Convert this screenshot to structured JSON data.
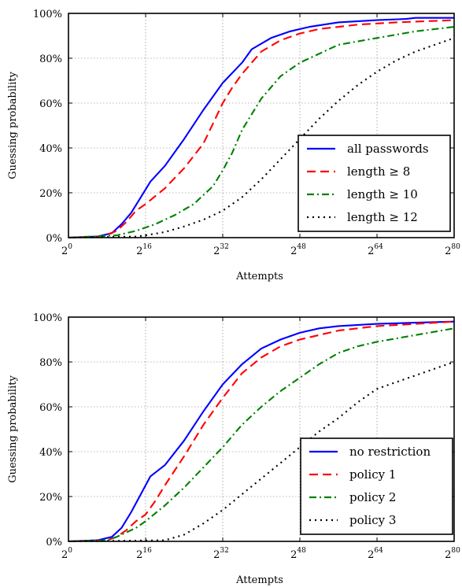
{
  "chart_data": [
    {
      "type": "line",
      "xlabel": "Attempts",
      "ylabel": "Guessing probability",
      "x_scale": "log2",
      "xlim": [
        0,
        80
      ],
      "ylim": [
        0,
        100
      ],
      "x_ticks": [
        {
          "base": "2",
          "exp": "0",
          "value": 0
        },
        {
          "base": "2",
          "exp": "16",
          "value": 16
        },
        {
          "base": "2",
          "exp": "32",
          "value": 32
        },
        {
          "base": "2",
          "exp": "48",
          "value": 48
        },
        {
          "base": "2",
          "exp": "64",
          "value": 64
        },
        {
          "base": "2",
          "exp": "80",
          "value": 80
        }
      ],
      "y_ticks": [
        {
          "label": "0%",
          "value": 0
        },
        {
          "label": "20%",
          "value": 20
        },
        {
          "label": "40%",
          "value": 40
        },
        {
          "label": "60%",
          "value": 60
        },
        {
          "label": "80%",
          "value": 80
        },
        {
          "label": "100%",
          "value": 100
        }
      ],
      "grid": true,
      "legend_position": "lower-right",
      "series": [
        {
          "name": "all passwords",
          "color": "#0000ff",
          "dash": "solid",
          "x": [
            0,
            6,
            9,
            11,
            13,
            15,
            17,
            20,
            24,
            28,
            32,
            36,
            38,
            42,
            46,
            50,
            56,
            64,
            70,
            72,
            80
          ],
          "y": [
            0,
            0.5,
            2,
            6,
            11,
            18,
            25,
            32,
            44,
            57,
            69,
            78,
            84,
            89,
            92,
            94,
            96,
            97,
            97.5,
            98,
            98
          ]
        },
        {
          "name": "length ≥ 8",
          "color": "#ff0000",
          "dash": "dash",
          "x": [
            0,
            7,
            10,
            12,
            14,
            16,
            20,
            24,
            28,
            30,
            32,
            34,
            36,
            40,
            44,
            48,
            52,
            60,
            68,
            80
          ],
          "y": [
            0,
            0.5,
            3,
            7,
            12,
            15,
            22,
            31,
            42,
            51,
            60,
            67,
            73,
            83,
            88,
            91,
            93,
            95,
            96,
            97
          ]
        },
        {
          "name": "length ≥ 10",
          "color": "#008000",
          "dash": "dashdot",
          "x": [
            0,
            10,
            14,
            18,
            22,
            26,
            28,
            30,
            32,
            34,
            36,
            40,
            44,
            48,
            52,
            56,
            64,
            72,
            80
          ],
          "y": [
            0,
            1,
            3,
            6,
            10,
            15,
            19,
            23,
            30,
            38,
            48,
            62,
            72,
            78,
            82,
            86,
            89,
            92,
            94
          ]
        },
        {
          "name": "length ≥ 12",
          "color": "#000000",
          "dash": "dot",
          "x": [
            0,
            14,
            16,
            20,
            24,
            28,
            32,
            36,
            40,
            44,
            48,
            52,
            56,
            60,
            64,
            68,
            72,
            76,
            80
          ],
          "y": [
            0,
            0.5,
            1,
            2.5,
            5,
            8,
            12,
            18,
            26,
            35,
            44,
            53,
            61,
            68,
            74,
            79,
            83,
            86,
            89
          ]
        }
      ]
    },
    {
      "type": "line",
      "xlabel": "Attempts",
      "ylabel": "Guessing probability",
      "x_scale": "log2",
      "xlim": [
        0,
        80
      ],
      "ylim": [
        0,
        100
      ],
      "x_ticks": [
        {
          "base": "2",
          "exp": "0",
          "value": 0
        },
        {
          "base": "2",
          "exp": "16",
          "value": 16
        },
        {
          "base": "2",
          "exp": "32",
          "value": 32
        },
        {
          "base": "2",
          "exp": "48",
          "value": 48
        },
        {
          "base": "2",
          "exp": "64",
          "value": 64
        },
        {
          "base": "2",
          "exp": "80",
          "value": 80
        }
      ],
      "y_ticks": [
        {
          "label": "0%",
          "value": 0
        },
        {
          "label": "20%",
          "value": 20
        },
        {
          "label": "40%",
          "value": 40
        },
        {
          "label": "60%",
          "value": 60
        },
        {
          "label": "80%",
          "value": 80
        },
        {
          "label": "100%",
          "value": 100
        }
      ],
      "grid": true,
      "legend_position": "lower-right",
      "series": [
        {
          "name": "no restriction",
          "color": "#0000ff",
          "dash": "solid",
          "x": [
            0,
            6,
            9,
            11,
            13,
            15,
            17,
            20,
            24,
            28,
            32,
            36,
            40,
            44,
            48,
            52,
            56,
            64,
            72,
            80
          ],
          "y": [
            0,
            0.5,
            2,
            6,
            13,
            21,
            29,
            34,
            45,
            58,
            70,
            79,
            86,
            90,
            93,
            95,
            96,
            97,
            97.5,
            98
          ]
        },
        {
          "name": "policy 1",
          "color": "#ff0000",
          "dash": "dash",
          "x": [
            0,
            8,
            10,
            12,
            14,
            16,
            18,
            20,
            24,
            28,
            32,
            36,
            40,
            44,
            48,
            52,
            56,
            64,
            72,
            80
          ],
          "y": [
            0,
            0.5,
            2,
            5,
            9,
            12,
            18,
            25,
            38,
            52,
            64,
            75,
            82,
            87,
            90,
            92,
            94,
            96,
            97,
            98
          ]
        },
        {
          "name": "policy 2",
          "color": "#008000",
          "dash": "dashdot",
          "x": [
            0,
            8,
            10,
            12,
            14,
            16,
            20,
            24,
            28,
            32,
            36,
            40,
            44,
            48,
            52,
            56,
            60,
            64,
            72,
            80
          ],
          "y": [
            0,
            0.5,
            2,
            4,
            6,
            9,
            16,
            24,
            33,
            42,
            52,
            60,
            67,
            73,
            79,
            84,
            87,
            89,
            92,
            95
          ]
        },
        {
          "name": "policy 3",
          "color": "#000000",
          "dash": "dot",
          "x": [
            0,
            20,
            24,
            28,
            32,
            36,
            40,
            44,
            48,
            52,
            56,
            60,
            64,
            68,
            72,
            76,
            80
          ],
          "y": [
            0,
            0.5,
            3,
            8,
            14,
            21,
            28,
            35,
            42,
            49,
            55,
            62,
            68,
            71,
            74,
            77,
            80
          ]
        }
      ]
    }
  ]
}
